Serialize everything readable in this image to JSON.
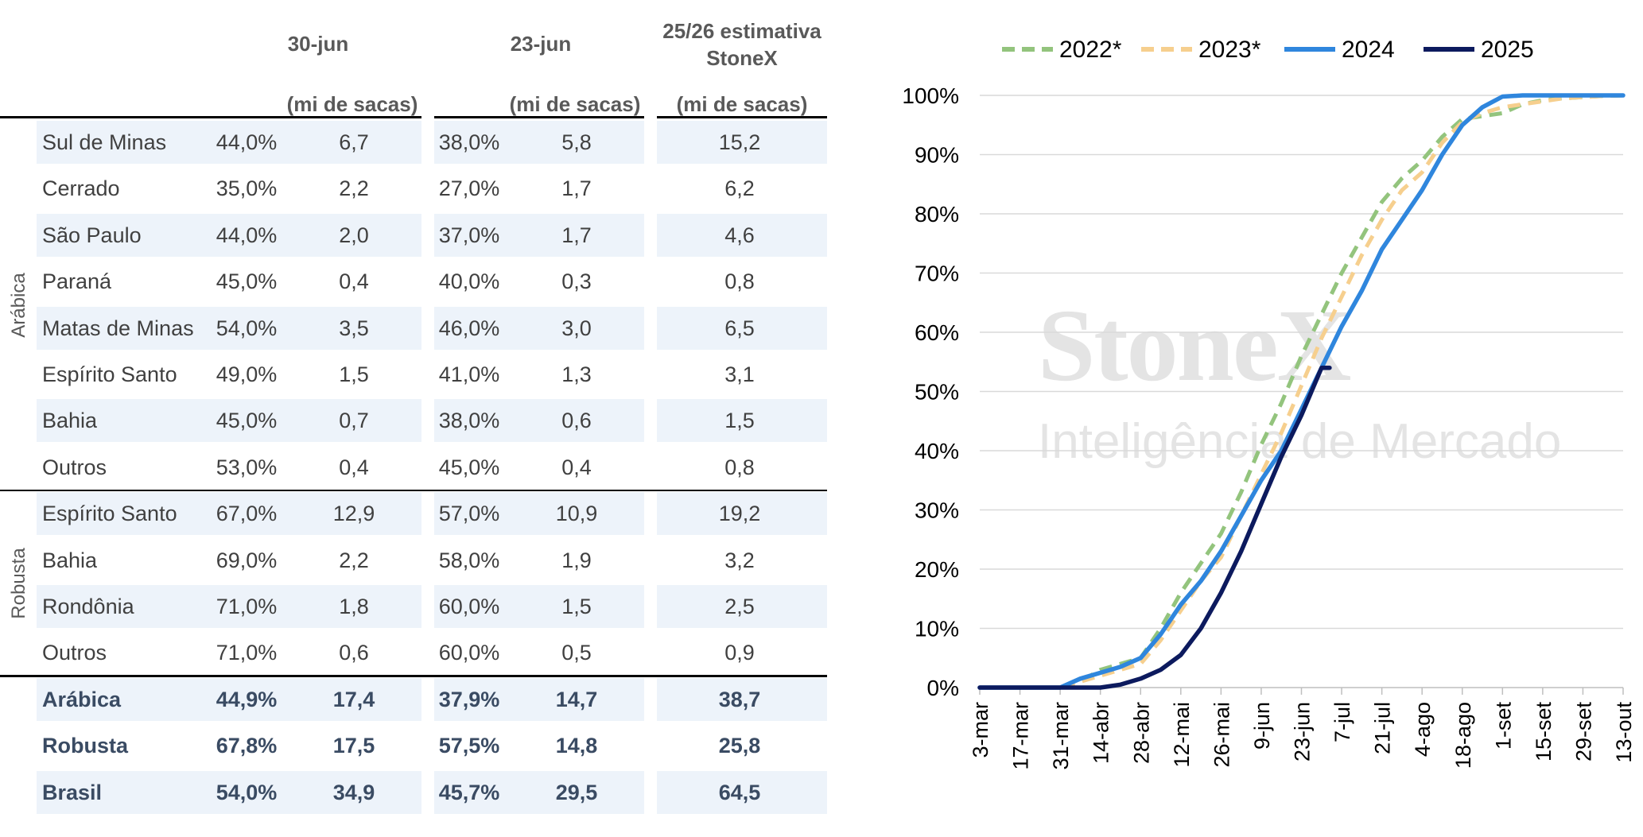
{
  "table": {
    "headers": {
      "col1": "30-jun",
      "col2": "23-jun",
      "col3": "25/26 estimativa\nStoneX",
      "unit": "(mi de sacas)"
    },
    "groups": {
      "arabica": "Arábica",
      "robusta": "Robusta"
    },
    "rows": [
      {
        "region": "Sul de Minas",
        "p1": "44,0%",
        "v1": "6,7",
        "p2": "38,0%",
        "v2": "5,8",
        "est": "15,2"
      },
      {
        "region": "Cerrado",
        "p1": "35,0%",
        "v1": "2,2",
        "p2": "27,0%",
        "v2": "1,7",
        "est": "6,2"
      },
      {
        "region": "São Paulo",
        "p1": "44,0%",
        "v1": "2,0",
        "p2": "37,0%",
        "v2": "1,7",
        "est": "4,6"
      },
      {
        "region": "Paraná",
        "p1": "45,0%",
        "v1": "0,4",
        "p2": "40,0%",
        "v2": "0,3",
        "est": "0,8"
      },
      {
        "region": "Matas de Minas",
        "p1": "54,0%",
        "v1": "3,5",
        "p2": "46,0%",
        "v2": "3,0",
        "est": "6,5"
      },
      {
        "region": "Espírito Santo",
        "p1": "49,0%",
        "v1": "1,5",
        "p2": "41,0%",
        "v2": "1,3",
        "est": "3,1"
      },
      {
        "region": "Bahia",
        "p1": "45,0%",
        "v1": "0,7",
        "p2": "38,0%",
        "v2": "0,6",
        "est": "1,5"
      },
      {
        "region": "Outros",
        "p1": "53,0%",
        "v1": "0,4",
        "p2": "45,0%",
        "v2": "0,4",
        "est": "0,8"
      },
      {
        "region": "Espírito Santo",
        "p1": "67,0%",
        "v1": "12,9",
        "p2": "57,0%",
        "v2": "10,9",
        "est": "19,2"
      },
      {
        "region": "Bahia",
        "p1": "69,0%",
        "v1": "2,2",
        "p2": "58,0%",
        "v2": "1,9",
        "est": "3,2"
      },
      {
        "region": "Rondônia",
        "p1": "71,0%",
        "v1": "1,8",
        "p2": "60,0%",
        "v2": "1,5",
        "est": "2,5"
      },
      {
        "region": "Outros",
        "p1": "71,0%",
        "v1": "0,6",
        "p2": "60,0%",
        "v2": "0,5",
        "est": "0,9"
      }
    ],
    "totals": [
      {
        "region": "Arábica",
        "p1": "44,9%",
        "v1": "17,4",
        "p2": "37,9%",
        "v2": "14,7",
        "est": "38,7"
      },
      {
        "region": "Robusta",
        "p1": "67,8%",
        "v1": "17,5",
        "p2": "57,5%",
        "v2": "14,8",
        "est": "25,8"
      },
      {
        "region": "Brasil",
        "p1": "54,0%",
        "v1": "34,9",
        "p2": "45,7%",
        "v2": "29,5",
        "est": "64,5"
      }
    ]
  },
  "watermark": {
    "brand": "StoneX",
    "tagline": "Inteligência de Mercado"
  },
  "chart_data": {
    "type": "line",
    "categories": [
      "3-mar",
      "17-mar",
      "31-mar",
      "14-abr",
      "28-abr",
      "12-mai",
      "26-mai",
      "9-jun",
      "23-jun",
      "7-jul",
      "21-jul",
      "4-ago",
      "18-ago",
      "1-set",
      "15-set",
      "29-set",
      "13-out"
    ],
    "ylim": [
      0,
      100
    ],
    "yticks": [
      "0%",
      "10%",
      "20%",
      "30%",
      "40%",
      "50%",
      "60%",
      "70%",
      "80%",
      "90%",
      "100%"
    ],
    "legend_position": "top",
    "series": [
      {
        "name": "2022*",
        "color": "#93c47d",
        "dashed": true,
        "x": [
          0,
          0.5,
          1,
          1.5,
          2,
          2.5,
          3,
          3.5,
          4,
          4.5,
          5,
          5.5,
          6,
          6.5,
          7,
          7.5,
          8,
          8.5,
          9,
          9.5,
          10,
          10.5,
          11,
          11.5,
          12,
          12.5,
          13,
          13.5,
          14,
          14.5,
          15,
          15.5,
          16
        ],
        "values": [
          0,
          0,
          0,
          0,
          0,
          1,
          3,
          4,
          5,
          10,
          16,
          21,
          26,
          33,
          41,
          48,
          56,
          63,
          70,
          76,
          82,
          86,
          89,
          93,
          96,
          96.5,
          97,
          98.5,
          99.2,
          99.5,
          99.7,
          99.9,
          100
        ]
      },
      {
        "name": "2023*",
        "color": "#f6cf8e",
        "dashed": true,
        "x": [
          0,
          0.5,
          1,
          1.5,
          2,
          2.5,
          3,
          3.5,
          4,
          4.5,
          5,
          5.5,
          6,
          6.5,
          7,
          7.5,
          8,
          8.5,
          9,
          9.5,
          10,
          10.5,
          11,
          11.5,
          12,
          12.5,
          13,
          13.5,
          14,
          14.5,
          15,
          15.5,
          16
        ],
        "values": [
          0,
          0,
          0,
          0,
          0,
          1,
          2,
          3,
          4,
          8,
          13,
          18,
          22,
          29,
          36,
          43,
          51,
          59,
          66,
          73,
          79,
          84,
          87,
          92,
          95.5,
          97,
          98,
          98.5,
          99,
          99.5,
          99.7,
          99.9,
          100
        ]
      },
      {
        "name": "2024",
        "color": "#2f86dd",
        "dashed": false,
        "x": [
          0,
          0.5,
          1,
          1.5,
          2,
          2.5,
          3,
          3.5,
          4,
          4.5,
          5,
          5.5,
          6,
          6.5,
          7,
          7.5,
          8,
          8.5,
          9,
          9.5,
          10,
          10.5,
          11,
          11.5,
          12,
          12.5,
          13,
          13.5,
          14,
          14.5,
          15,
          15.5,
          16
        ],
        "values": [
          0,
          0,
          0,
          0,
          0,
          1.5,
          2.5,
          3.5,
          5,
          9,
          14,
          18,
          23,
          29,
          35,
          40,
          47,
          54,
          61,
          67,
          74,
          79,
          84,
          90,
          95,
          98,
          99.8,
          100,
          100,
          100,
          100,
          100,
          100
        ]
      },
      {
        "name": "2025",
        "color": "#0c1a5e",
        "dashed": false,
        "x": [
          0,
          0.5,
          1,
          1.5,
          2,
          2.5,
          3,
          3.5,
          4,
          4.5,
          5,
          5.5,
          6,
          6.5,
          7,
          7.5,
          8,
          8.5,
          8.7
        ],
        "values": [
          0,
          0,
          0,
          0,
          0,
          0,
          0,
          0.5,
          1.5,
          3,
          5.5,
          10,
          16,
          23,
          31,
          39,
          46,
          54,
          54
        ]
      }
    ]
  }
}
